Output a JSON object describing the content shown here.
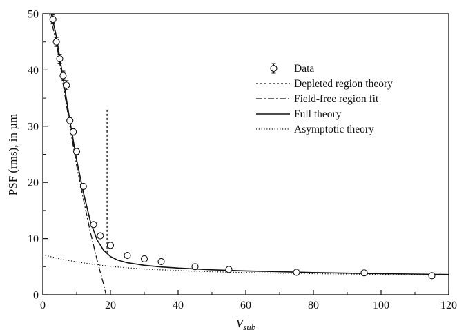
{
  "chart_data": {
    "type": "scatter",
    "title": "",
    "xlabel": "V",
    "xlabel_sub": "sub",
    "ylabel": "PSF (rms), in µm",
    "xlim": [
      0,
      120
    ],
    "ylim": [
      0,
      50
    ],
    "x_ticks": [
      0,
      20,
      40,
      60,
      80,
      100,
      120
    ],
    "y_ticks": [
      0,
      10,
      20,
      30,
      40,
      50
    ],
    "grid": false,
    "legend_position": "upper-right",
    "series": [
      {
        "name": "Data",
        "style": "open-circle-errorbar",
        "x": [
          3,
          4,
          5,
          6,
          7,
          8,
          9,
          10,
          12,
          15,
          17,
          20,
          25,
          30,
          35,
          45,
          55,
          75,
          95,
          115
        ],
        "y": [
          49,
          45,
          42,
          39,
          37.3,
          31,
          29,
          25.5,
          19.3,
          12.5,
          10.5,
          8.8,
          7,
          6.4,
          5.9,
          5,
          4.5,
          4,
          3.9,
          3.4
        ],
        "err": [
          0.8,
          0.8,
          0.8,
          0.8,
          0.8,
          0.6,
          0.6,
          0.5,
          0.4,
          0.3,
          0.3,
          0.3,
          0.2,
          0.2,
          0.2,
          0.2,
          0.2,
          0.2,
          0.2,
          0.2
        ]
      },
      {
        "name": "Depleted region theory",
        "style": "dashed",
        "x": [
          19,
          19
        ],
        "y": [
          7.5,
          33
        ]
      },
      {
        "name": "Field-free region fit",
        "style": "dashdot",
        "x": [
          2,
          4,
          6,
          8,
          10,
          12,
          14,
          16,
          17,
          18,
          18.7
        ],
        "y": [
          50,
          45,
          37.5,
          30,
          23,
          17,
          11.3,
          6.3,
          4,
          1.8,
          0
        ]
      },
      {
        "name": "Full theory",
        "style": "solid",
        "x": [
          2.5,
          4,
          6,
          8,
          10,
          12,
          14,
          16,
          18,
          20,
          22,
          25,
          30,
          35,
          40,
          50,
          60,
          70,
          80,
          90,
          100,
          110,
          120
        ],
        "y": [
          50,
          46,
          38.5,
          31,
          24,
          18.2,
          13.2,
          9.8,
          7.9,
          6.8,
          6.2,
          5.7,
          5.25,
          4.95,
          4.75,
          4.45,
          4.25,
          4.1,
          3.95,
          3.85,
          3.75,
          3.68,
          3.6
        ]
      },
      {
        "name": "Asymptotic theory",
        "style": "dotted",
        "x": [
          0,
          5,
          10,
          15,
          20,
          25,
          30,
          40,
          50,
          60,
          70,
          80,
          90,
          100,
          110,
          120
        ],
        "y": [
          7.1,
          6.4,
          5.85,
          5.4,
          5.05,
          4.8,
          4.6,
          4.3,
          4.1,
          3.95,
          3.85,
          3.75,
          3.68,
          3.62,
          3.57,
          3.52
        ]
      }
    ]
  }
}
